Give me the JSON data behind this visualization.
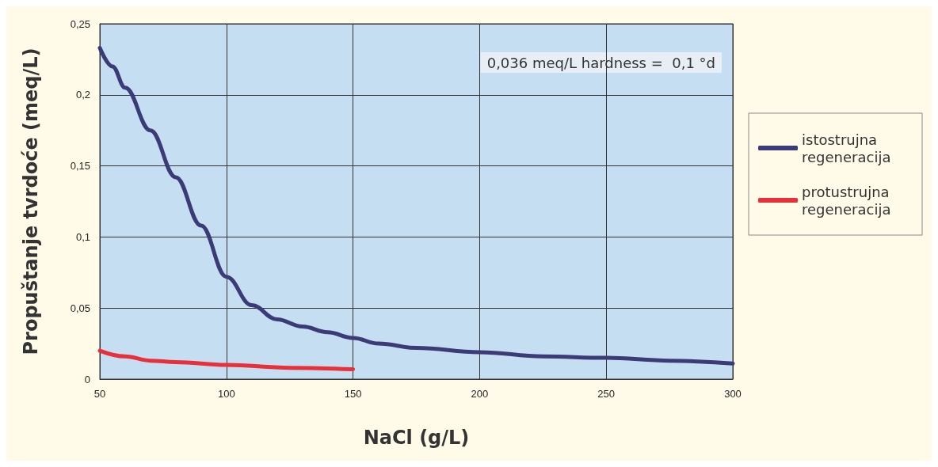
{
  "chart_data": {
    "type": "line",
    "xlabel": "NaCl (g/L)",
    "ylabel": "Propuštanje tvrdoće (meq/L)",
    "annotations": [
      "0,036 meq/L hardness =  0,1 °d"
    ],
    "series": [
      {
        "name": "istostrujna regeneracija",
        "color": "#3b3b78",
        "x": [
          50,
          55,
          60,
          70,
          80,
          90,
          100,
          110,
          120,
          130,
          140,
          150,
          160,
          175,
          200,
          225,
          250,
          275,
          300
        ],
        "values": [
          0.233,
          0.22,
          0.205,
          0.175,
          0.142,
          0.108,
          0.072,
          0.052,
          0.042,
          0.037,
          0.033,
          0.029,
          0.025,
          0.022,
          0.019,
          0.016,
          0.015,
          0.013,
          0.011
        ]
      },
      {
        "name": "protustrujna regeneracija",
        "color": "#e8303a",
        "x": [
          50,
          60,
          70,
          80,
          100,
          125,
          150
        ],
        "values": [
          0.02,
          0.016,
          0.013,
          0.012,
          0.01,
          0.008,
          0.007
        ]
      }
    ],
    "xlim": [
      50,
      300
    ],
    "xticks": [
      50,
      100,
      150,
      200,
      250,
      300
    ],
    "ylim": [
      0,
      0.25
    ],
    "yticks": [
      0,
      {
        "value": 0.05,
        "label": "0,05"
      },
      {
        "value": 0.1,
        "label": "0,1"
      },
      {
        "value": 0.15,
        "label": "0,15"
      },
      {
        "value": 0.2,
        "label": "0,2"
      },
      {
        "value": 0.25,
        "label": "0,25"
      }
    ],
    "grid": true,
    "legend": "right",
    "marker": "none",
    "line_style": "solid"
  }
}
